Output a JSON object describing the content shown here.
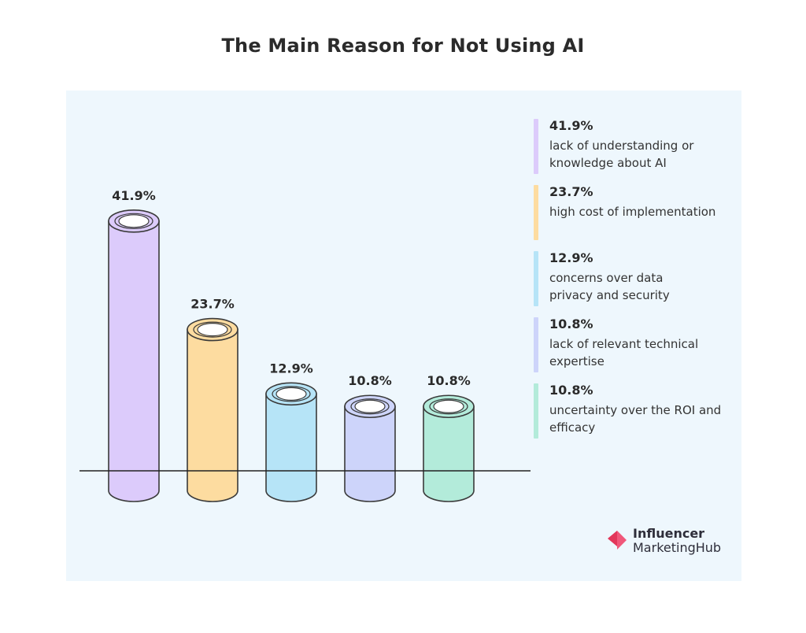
{
  "chart_data": {
    "type": "bar",
    "title": "The Main Reason for Not Using AI",
    "categories": [
      "lack of understanding or knowledge about AI",
      "high cost of implementation",
      "concerns over data privacy and security",
      "lack of relevant technical expertise",
      "uncertainty over the ROI and efficacy"
    ],
    "values": [
      41.9,
      23.7,
      12.9,
      10.8,
      10.8
    ],
    "value_labels": [
      "41.9%",
      "23.7%",
      "12.9%",
      "10.8%",
      "10.8%"
    ],
    "colors": [
      "#dccbfb",
      "#fddca0",
      "#b6e4f7",
      "#cdd4fa",
      "#b3ebda"
    ],
    "legend_lines": [
      [
        "lack of understanding or",
        "knowledge about AI"
      ],
      [
        "high cost of implementation"
      ],
      [
        "concerns over data",
        "privacy and security"
      ],
      [
        "lack of relevant technical",
        "expertise"
      ],
      [
        "uncertainty over the ROI and",
        "efficacy"
      ]
    ],
    "legend_position": "right",
    "xlabel": "",
    "ylabel": "",
    "grid": false
  },
  "branding": {
    "logo_line1": "Influencer",
    "logo_line2": "MarketingHub"
  }
}
